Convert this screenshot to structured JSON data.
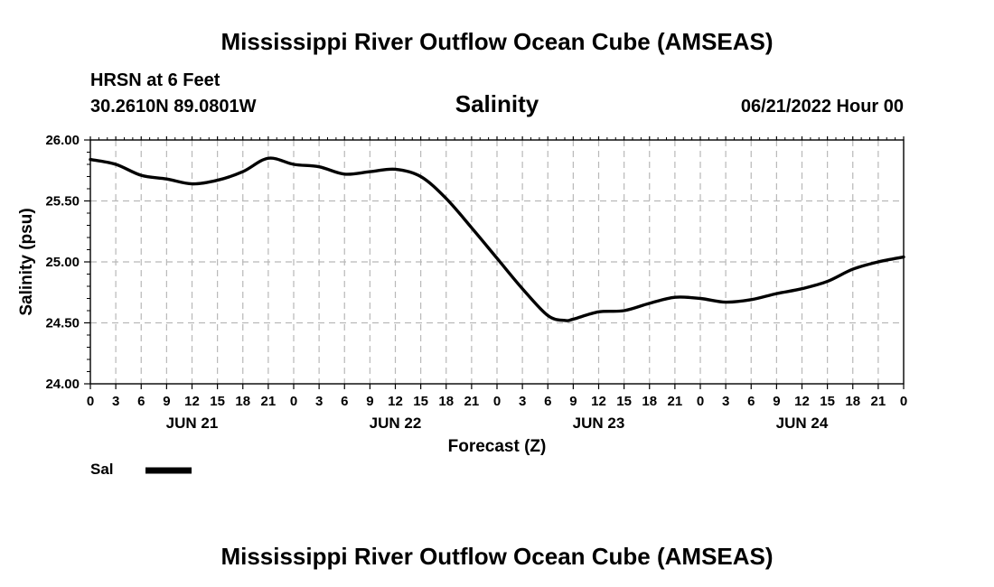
{
  "chart_data": {
    "type": "line",
    "title": "Mississippi River Outflow Ocean Cube (AMSEAS)",
    "footer_title": "Mississippi River Outflow Ocean Cube (AMSEAS)",
    "station": "HRSN at 6 Feet",
    "coordinates": "30.2610N  89.0801W",
    "variable_title": "Salinity",
    "run_time": "06/21/2022 Hour 00",
    "ylabel": "Salinity (psu)",
    "xlabel": "Forecast (Z)",
    "ylim": [
      24.0,
      26.0
    ],
    "yticks": [
      24.0,
      24.5,
      25.0,
      25.5,
      26.0
    ],
    "ytick_labels": [
      "24.00",
      "24.50",
      "25.00",
      "25.50",
      "26.00"
    ],
    "xlim_hours": [
      0,
      96
    ],
    "xticks_hours": [
      0,
      3,
      6,
      9,
      12,
      15,
      18,
      21,
      24,
      27,
      30,
      33,
      36,
      39,
      42,
      45,
      48,
      51,
      54,
      57,
      60,
      63,
      66,
      69,
      72,
      75,
      78,
      81,
      84,
      87,
      90,
      93,
      96
    ],
    "xtick_labels": [
      "0",
      "3",
      "6",
      "9",
      "12",
      "15",
      "18",
      "21",
      "0",
      "3",
      "6",
      "9",
      "12",
      "15",
      "18",
      "21",
      "0",
      "3",
      "6",
      "9",
      "12",
      "15",
      "18",
      "21",
      "0",
      "3",
      "6",
      "9",
      "12",
      "15",
      "18",
      "21",
      "0"
    ],
    "day_labels": [
      {
        "label": "JUN 21",
        "hour": 12
      },
      {
        "label": "JUN 22",
        "hour": 36
      },
      {
        "label": "JUN 23",
        "hour": 60
      },
      {
        "label": "JUN 24",
        "hour": 84
      }
    ],
    "grid": true,
    "series": [
      {
        "name": "Sal",
        "color": "#000000",
        "x": [
          0,
          3,
          6,
          9,
          12,
          15,
          18,
          21,
          24,
          27,
          30,
          33,
          36,
          39,
          42,
          45,
          48,
          51,
          54,
          56,
          57,
          60,
          63,
          66,
          69,
          72,
          75,
          78,
          81,
          84,
          87,
          90,
          93,
          96
        ],
        "values": [
          25.84,
          25.8,
          25.71,
          25.68,
          25.64,
          25.67,
          25.74,
          25.85,
          25.8,
          25.78,
          25.72,
          25.74,
          25.76,
          25.7,
          25.52,
          25.28,
          25.03,
          24.78,
          24.56,
          24.52,
          24.53,
          24.59,
          24.6,
          24.66,
          24.71,
          24.7,
          24.67,
          24.69,
          24.74,
          24.78,
          24.84,
          24.94,
          25.0,
          25.04
        ]
      }
    ],
    "legend": {
      "label": "Sal",
      "position": "bottom-left"
    }
  }
}
